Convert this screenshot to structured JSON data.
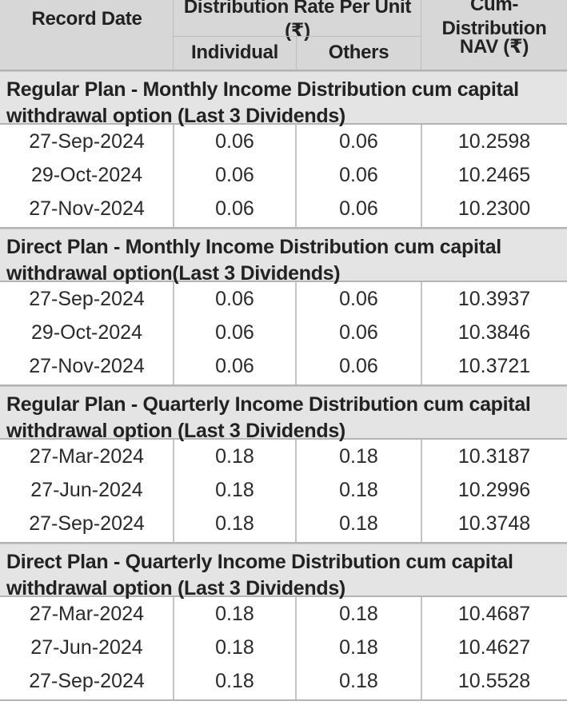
{
  "header": {
    "record_date": "Record Date",
    "distribution_rate": "Distribution Rate Per Unit  (₹)",
    "individual": "Individual",
    "others": "Others",
    "cum_distribution_line1": "Cum-Distribution",
    "cum_distribution_line2": "NAV (₹)"
  },
  "sections": [
    {
      "title": "Regular Plan - Monthly Income Distribution cum capital withdrawal option (Last 3 Dividends)",
      "rows": [
        {
          "date": "27-Sep-2024",
          "individual": "0.06",
          "others": "0.06",
          "nav": "10.2598"
        },
        {
          "date": "29-Oct-2024",
          "individual": "0.06",
          "others": "0.06",
          "nav": "10.2465"
        },
        {
          "date": "27-Nov-2024",
          "individual": "0.06",
          "others": "0.06",
          "nav": "10.2300"
        }
      ]
    },
    {
      "title": "Direct Plan - Monthly Income Distribution cum capital withdrawal option(Last 3 Dividends)",
      "rows": [
        {
          "date": "27-Sep-2024",
          "individual": "0.06",
          "others": "0.06",
          "nav": "10.3937"
        },
        {
          "date": "29-Oct-2024",
          "individual": "0.06",
          "others": "0.06",
          "nav": "10.3846"
        },
        {
          "date": "27-Nov-2024",
          "individual": "0.06",
          "others": "0.06",
          "nav": "10.3721"
        }
      ]
    },
    {
      "title": "Regular Plan - Quarterly Income Distribution cum capital withdrawal option (Last 3 Dividends)",
      "rows": [
        {
          "date": "27-Mar-2024",
          "individual": "0.18",
          "others": "0.18",
          "nav": "10.3187"
        },
        {
          "date": "27-Jun-2024",
          "individual": "0.18",
          "others": "0.18",
          "nav": "10.2996"
        },
        {
          "date": "27-Sep-2024",
          "individual": "0.18",
          "others": "0.18",
          "nav": "10.3748"
        }
      ]
    },
    {
      "title": "Direct Plan - Quarterly Income Distribution cum capital withdrawal option (Last 3 Dividends)",
      "rows": [
        {
          "date": "27-Mar-2024",
          "individual": "0.18",
          "others": "0.18",
          "nav": "10.4687"
        },
        {
          "date": "27-Jun-2024",
          "individual": "0.18",
          "others": "0.18",
          "nav": "10.4627"
        },
        {
          "date": "27-Sep-2024",
          "individual": "0.18",
          "others": "0.18",
          "nav": "10.5528"
        }
      ]
    }
  ]
}
